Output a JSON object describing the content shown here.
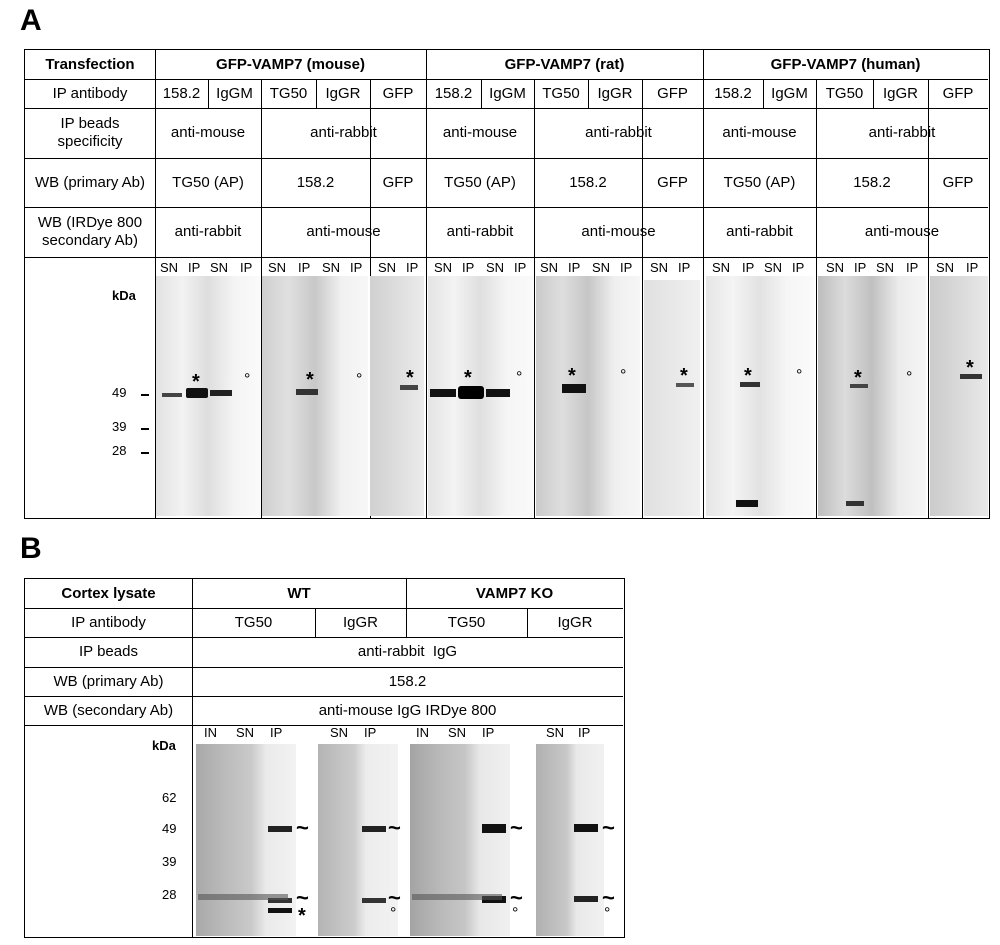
{
  "panel_a": {
    "letter": "A",
    "rows": {
      "transfection": "Transfection",
      "ip_antibody": "IP antibody",
      "ip_beads": "IP beads specificity",
      "wb_primary": "WB (primary Ab)",
      "wb_secondary": "WB (IRDye 800 secondary Ab)"
    },
    "groups": [
      "GFP-VAMP7 (mouse)",
      "GFP-VAMP7 (rat)",
      "GFP-VAMP7 (human)"
    ],
    "ip_antibodies": [
      "158.2",
      "IgGM",
      "TG50",
      "IgGR",
      "GFP"
    ],
    "beads": [
      "anti-mouse",
      "anti-rabbit"
    ],
    "wb_primary": [
      "TG50 (AP)",
      "158.2",
      "GFP"
    ],
    "wb_secondary": [
      "anti-rabbit",
      "anti-mouse"
    ],
    "lane_labels": [
      "SN",
      "IP"
    ],
    "kda": "kDa",
    "markers": [
      "49",
      "39",
      "28"
    ],
    "star": "*",
    "circle": "°"
  },
  "panel_b": {
    "letter": "B",
    "rows": {
      "cortex": "Cortex lysate",
      "ip_antibody": "IP antibody",
      "ip_beads": "IP beads",
      "wb_primary": "WB (primary Ab)",
      "wb_secondary": "WB (secondary Ab)"
    },
    "groups": [
      "WT",
      "VAMP7 KO"
    ],
    "ip_antibodies": [
      "TG50",
      "IgGR",
      "TG50",
      "IgGR"
    ],
    "beads": "anti-rabbit  IgG",
    "primary": "158.2",
    "secondary": "anti-mouse IgG IRDye 800",
    "lane_labels": [
      "IN",
      "SN",
      "IP"
    ],
    "kda": "kDa",
    "markers": [
      "62",
      "49",
      "39",
      "28"
    ],
    "tilde": "~",
    "star": "*",
    "circle": "°"
  }
}
